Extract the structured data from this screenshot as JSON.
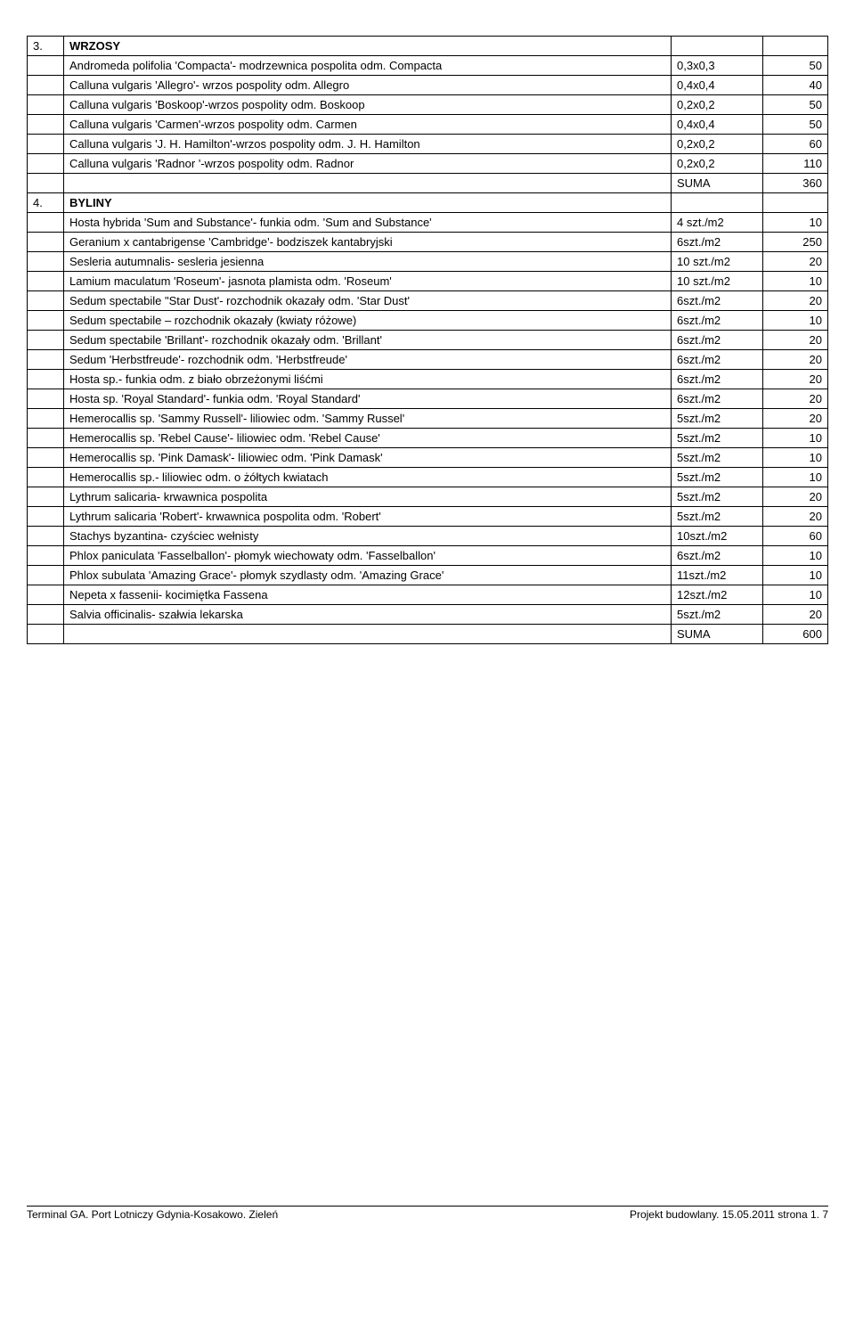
{
  "sections": [
    {
      "num": "3.",
      "title": "WRZOSY",
      "rows": [
        {
          "desc": "Andromeda polifolia 'Compacta'- modrzewnica pospolita odm. Compacta",
          "unit": "0,3x0,3",
          "val": "50"
        },
        {
          "desc": "Calluna vulgaris 'Allegro'- wrzos pospolity odm. Allegro",
          "unit": "0,4x0,4",
          "val": "40"
        },
        {
          "desc": "Calluna vulgaris 'Boskoop'-wrzos pospolity odm. Boskoop",
          "unit": "0,2x0,2",
          "val": "50"
        },
        {
          "desc": "Calluna vulgaris 'Carmen'-wrzos pospolity odm. Carmen",
          "unit": "0,4x0,4",
          "val": "50"
        },
        {
          "desc": "Calluna vulgaris 'J. H. Hamilton'-wrzos pospolity odm. J. H. Hamilton",
          "unit": "0,2x0,2",
          "val": "60"
        },
        {
          "desc": "Calluna vulgaris 'Radnor '-wrzos pospolity odm. Radnor",
          "unit": "0,2x0,2",
          "val": "110"
        }
      ],
      "sumLabel": "SUMA",
      "sumVal": "360"
    },
    {
      "num": "4.",
      "title": "BYLINY",
      "rows": [
        {
          "desc": "Hosta hybrida 'Sum and Substance'- funkia odm. 'Sum and Substance'",
          "unit": "4 szt./m2",
          "val": "10"
        },
        {
          "desc": "Geranium x cantabrigense 'Cambridge'- bodziszek kantabryjski",
          "unit": "6szt./m2",
          "val": "250"
        },
        {
          "desc": "Sesleria autumnalis- sesleria jesienna",
          "unit": "10 szt./m2",
          "val": "20"
        },
        {
          "desc": "Lamium maculatum 'Roseum'- jasnota plamista odm. 'Roseum'",
          "unit": "10 szt./m2",
          "val": "10"
        },
        {
          "desc": "Sedum spectabile \"Star Dust'- rozchodnik okazały odm. 'Star Dust'",
          "unit": "6szt./m2",
          "val": "20"
        },
        {
          "desc": "Sedum spectabile – rozchodnik okazały (kwiaty różowe)",
          "unit": "6szt./m2",
          "val": "10"
        },
        {
          "desc": "Sedum spectabile 'Brillant'- rozchodnik okazały odm. 'Brillant'",
          "unit": "6szt./m2",
          "val": "20"
        },
        {
          "desc": "Sedum 'Herbstfreude'- rozchodnik odm. 'Herbstfreude'",
          "unit": "6szt./m2",
          "val": "20"
        },
        {
          "desc": "Hosta sp.- funkia odm. z biało obrzeżonymi liśćmi",
          "unit": "6szt./m2",
          "val": "20"
        },
        {
          "desc": "Hosta sp. 'Royal Standard'- funkia odm. 'Royal Standard'",
          "unit": "6szt./m2",
          "val": "20"
        },
        {
          "desc": "Hemerocallis sp. 'Sammy Russell'- liliowiec odm. 'Sammy Russel'",
          "unit": "5szt./m2",
          "val": "20"
        },
        {
          "desc": "Hemerocallis sp. 'Rebel Cause'- liliowiec odm. 'Rebel Cause'",
          "unit": "5szt./m2",
          "val": "10"
        },
        {
          "desc": "Hemerocallis sp. 'Pink Damask'- liliowiec odm. 'Pink Damask'",
          "unit": "5szt./m2",
          "val": "10"
        },
        {
          "desc": "Hemerocallis sp.- liliowiec odm. o żółtych kwiatach",
          "unit": "5szt./m2",
          "val": "10"
        },
        {
          "desc": "Lythrum salicaria- krwawnica pospolita",
          "unit": "5szt./m2",
          "val": "20"
        },
        {
          "desc": "Lythrum salicaria 'Robert'- krwawnica pospolita odm. 'Robert'",
          "unit": "5szt./m2",
          "val": "20"
        },
        {
          "desc": "Stachys byzantina- czyściec wełnisty",
          "unit": "10szt./m2",
          "val": "60"
        },
        {
          "desc": "Phlox paniculata 'Fasselballon'- płomyk wiechowaty odm. 'Fasselballon'",
          "unit": "6szt./m2",
          "val": "10"
        },
        {
          "desc": "Phlox subulata 'Amazing Grace'- płomyk szydlasty odm. 'Amazing Grace'",
          "unit": "11szt./m2",
          "val": "10"
        },
        {
          "desc": "Nepeta x fassenii- kocimiętka Fassena",
          "unit": "12szt./m2",
          "val": "10"
        },
        {
          "desc": "Salvia officinalis- szałwia lekarska",
          "unit": "5szt./m2",
          "val": "20"
        }
      ],
      "sumLabel": "SUMA",
      "sumVal": "600"
    }
  ],
  "footer": {
    "left": "Terminal GA. Port Lotniczy Gdynia-Kosakowo. Zieleń",
    "right": "Projekt budowlany. 15.05.2011    strona 1.   7"
  }
}
